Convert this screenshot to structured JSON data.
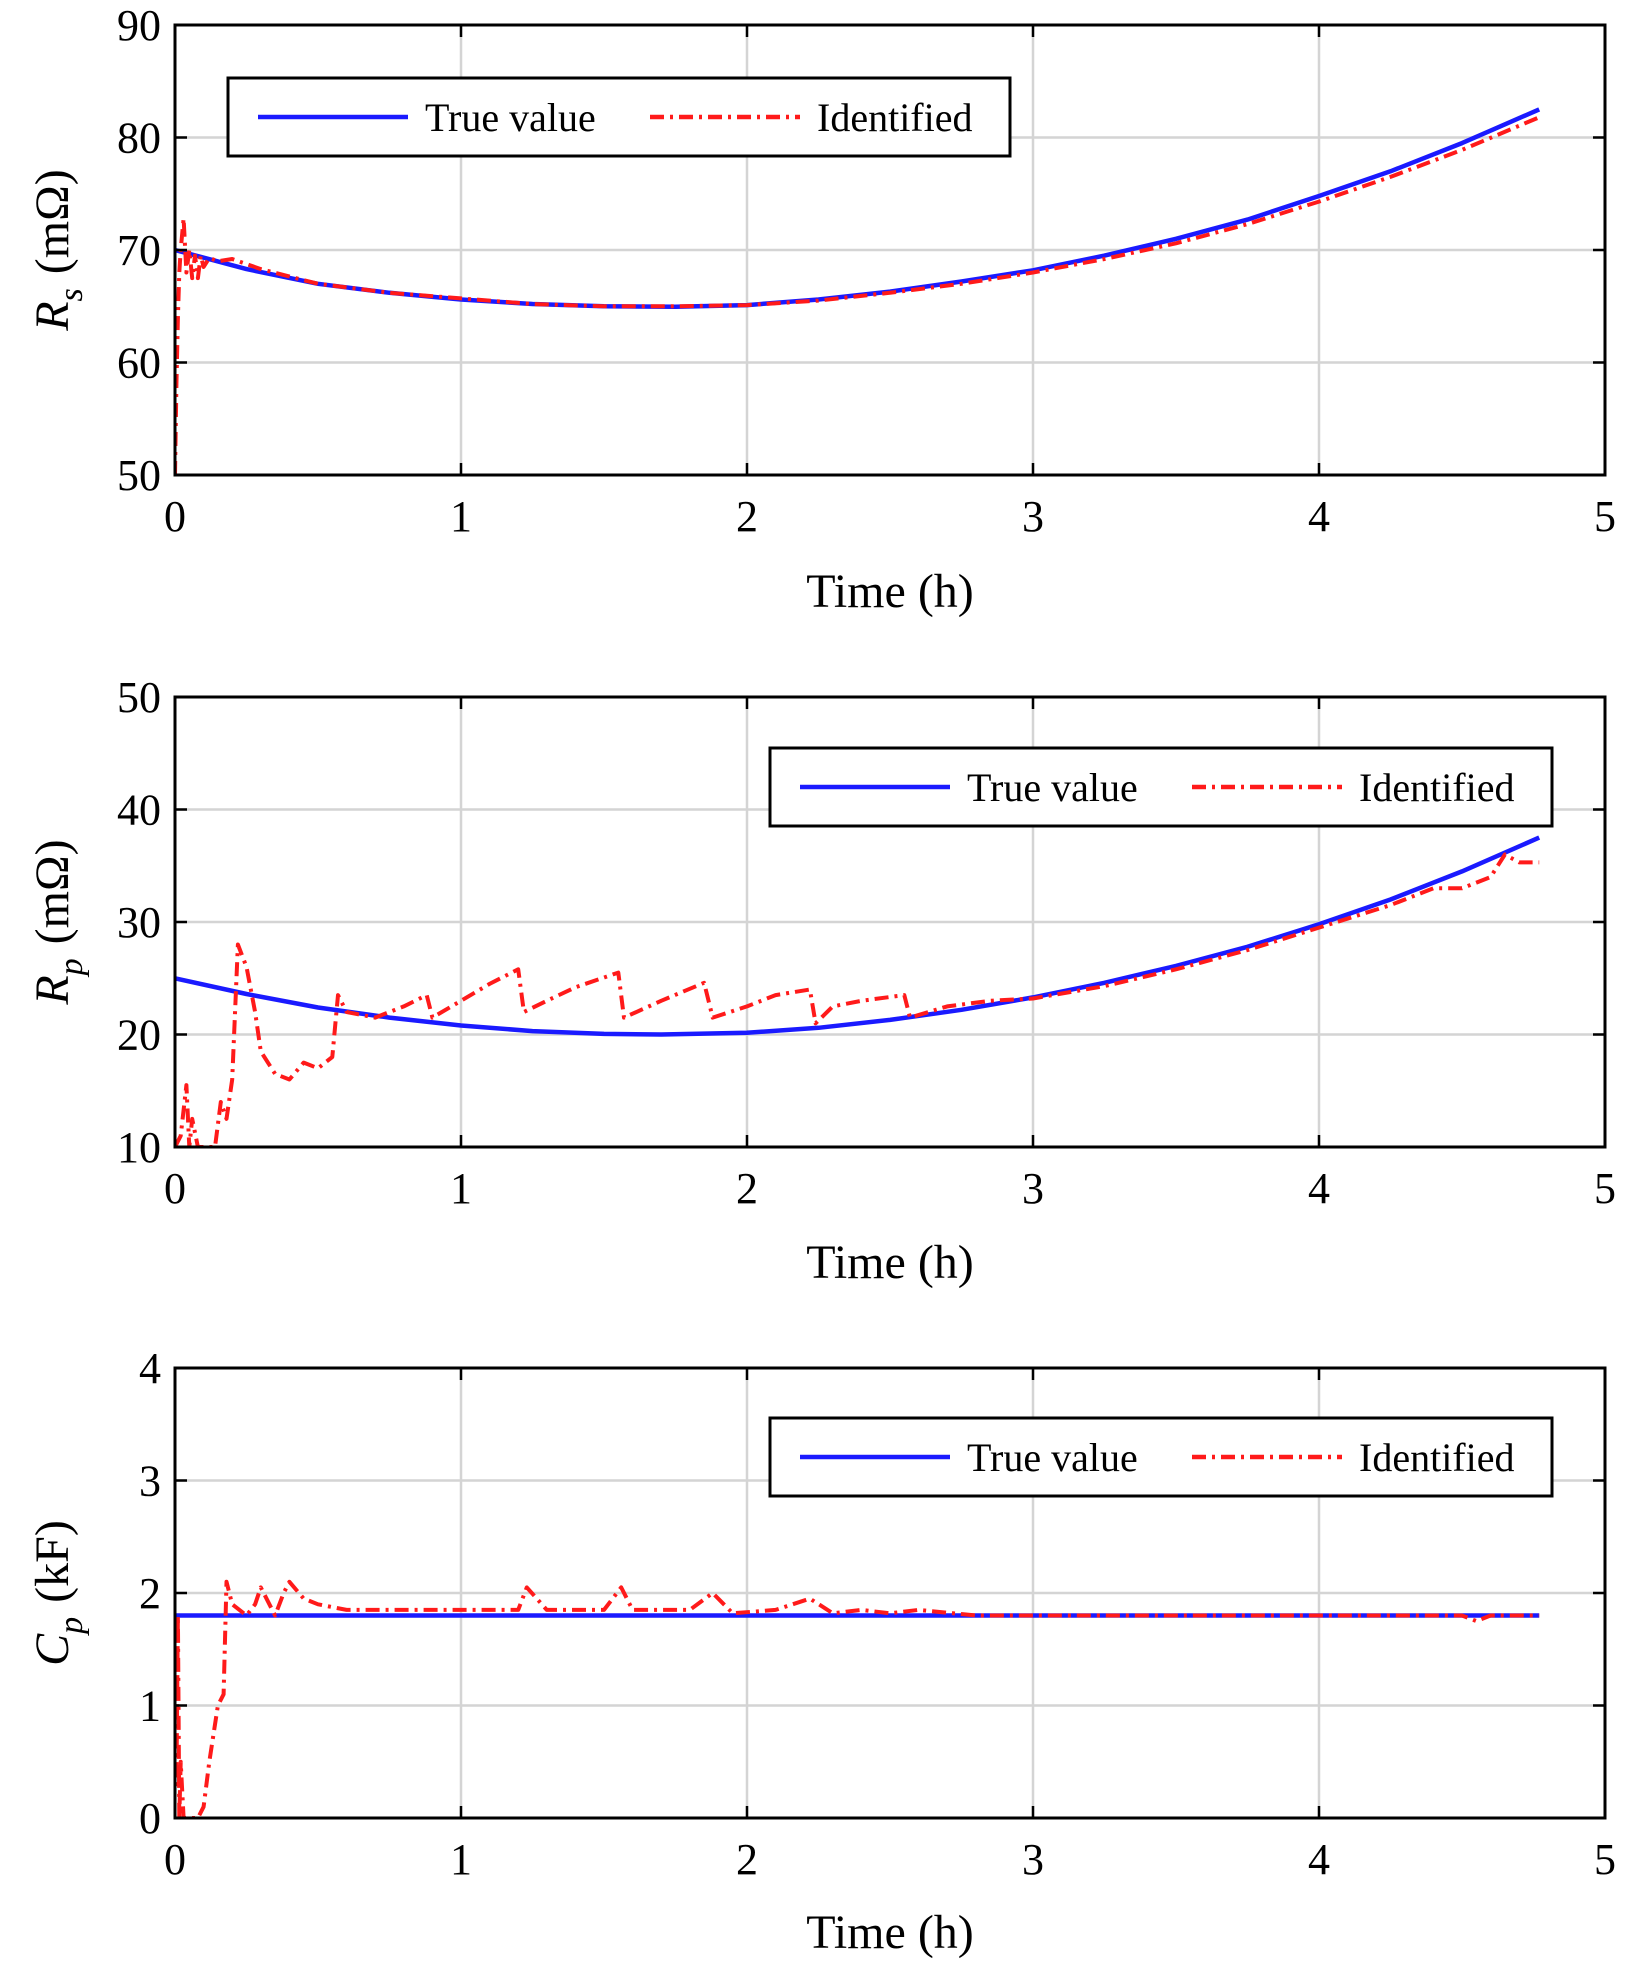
{
  "colors": {
    "true_value": "#1a1aff",
    "identified": "#ff1a1a",
    "grid": "#d4d4d4",
    "axis": "#000000"
  },
  "chart_data": [
    {
      "type": "line",
      "xlabel": "Time (h)",
      "ylabel": {
        "symbol": "R",
        "subscript": "s",
        "unit": "(mΩ)"
      },
      "xlim": [
        0,
        5
      ],
      "ylim": [
        50,
        90
      ],
      "xticks": [
        "0",
        "1",
        "2",
        "3",
        "4",
        "5"
      ],
      "yticks": [
        "50",
        "60",
        "70",
        "80",
        "90"
      ],
      "grid": true,
      "legend": {
        "position": "top-left",
        "entries": [
          "True value",
          "Identified"
        ]
      },
      "series": [
        {
          "name": "True value",
          "style": "solid",
          "x": [
            0,
            0.25,
            0.5,
            0.75,
            1.0,
            1.25,
            1.5,
            1.75,
            2.0,
            2.25,
            2.5,
            2.75,
            3.0,
            3.25,
            3.5,
            3.75,
            4.0,
            4.25,
            4.5,
            4.77
          ],
          "y": [
            70.0,
            68.3,
            67.0,
            66.2,
            65.6,
            65.2,
            65.0,
            64.95,
            65.1,
            65.6,
            66.3,
            67.2,
            68.2,
            69.5,
            71.0,
            72.7,
            74.8,
            77.0,
            79.5,
            82.5
          ]
        },
        {
          "name": "Identified",
          "style": "dash-dot",
          "x": [
            0,
            0.005,
            0.01,
            0.015,
            0.02,
            0.03,
            0.04,
            0.05,
            0.06,
            0.07,
            0.08,
            0.09,
            0.1,
            0.12,
            0.15,
            0.2,
            0.3,
            0.5,
            0.75,
            1.0,
            1.25,
            1.5,
            1.75,
            2.0,
            2.25,
            2.5,
            2.75,
            3.0,
            3.25,
            3.5,
            3.75,
            4.0,
            4.25,
            4.5,
            4.77
          ],
          "y": [
            50,
            58,
            64,
            68,
            70,
            72.8,
            68,
            70,
            67.5,
            69.5,
            67.5,
            69.5,
            68.5,
            69.3,
            69.0,
            69.2,
            68.3,
            67.0,
            66.2,
            65.7,
            65.2,
            65.0,
            65.0,
            65.1,
            65.5,
            66.2,
            67.0,
            68.0,
            69.2,
            70.6,
            72.3,
            74.3,
            76.5,
            78.9,
            81.8
          ]
        }
      ]
    },
    {
      "type": "line",
      "xlabel": "Time (h)",
      "ylabel": {
        "symbol": "R",
        "subscript": "p",
        "unit": "(mΩ)"
      },
      "xlim": [
        0,
        5
      ],
      "ylim": [
        10,
        50
      ],
      "xticks": [
        "0",
        "1",
        "2",
        "3",
        "4",
        "5"
      ],
      "yticks": [
        "10",
        "20",
        "30",
        "40",
        "50"
      ],
      "grid": true,
      "legend": {
        "position": "top-right",
        "entries": [
          "True value",
          "Identified"
        ]
      },
      "series": [
        {
          "name": "True value",
          "style": "solid",
          "x": [
            0,
            0.25,
            0.5,
            0.75,
            1.0,
            1.25,
            1.5,
            1.7,
            2.0,
            2.25,
            2.5,
            2.75,
            3.0,
            3.25,
            3.5,
            3.75,
            4.0,
            4.25,
            4.5,
            4.77
          ],
          "y": [
            25.0,
            23.6,
            22.4,
            21.5,
            20.8,
            20.3,
            20.05,
            20.0,
            20.15,
            20.6,
            21.3,
            22.2,
            23.3,
            24.6,
            26.1,
            27.8,
            29.8,
            32.0,
            34.5,
            37.5
          ]
        },
        {
          "name": "Identified",
          "style": "dash-dot",
          "x": [
            0,
            0.02,
            0.04,
            0.05,
            0.06,
            0.08,
            0.1,
            0.12,
            0.14,
            0.16,
            0.18,
            0.2,
            0.22,
            0.25,
            0.28,
            0.3,
            0.35,
            0.4,
            0.45,
            0.5,
            0.55,
            0.57,
            0.6,
            0.7,
            0.8,
            0.88,
            0.9,
            1.0,
            1.1,
            1.2,
            1.22,
            1.3,
            1.4,
            1.55,
            1.57,
            1.7,
            1.85,
            1.88,
            2.0,
            2.1,
            2.22,
            2.24,
            2.3,
            2.4,
            2.55,
            2.57,
            2.7,
            2.85,
            3.0,
            3.25,
            3.5,
            3.75,
            4.0,
            4.25,
            4.4,
            4.5,
            4.6,
            4.65,
            4.7,
            4.77
          ],
          "y": [
            10,
            11,
            15.5,
            10,
            12.5,
            10,
            10,
            10,
            10,
            14,
            12.5,
            16,
            28,
            26,
            22,
            18.5,
            16.5,
            16,
            17.5,
            17,
            18,
            23.5,
            22,
            21.5,
            22.5,
            23.5,
            21.5,
            23,
            24.5,
            25.8,
            22,
            23,
            24.2,
            25.5,
            21.5,
            23,
            24.6,
            21.5,
            22.5,
            23.5,
            24,
            21,
            22.5,
            23,
            23.5,
            21.5,
            22.5,
            23,
            23.2,
            24.3,
            25.8,
            27.5,
            29.5,
            31.5,
            33,
            33,
            34,
            36,
            35.3,
            35.3
          ]
        }
      ]
    },
    {
      "type": "line",
      "xlabel": "Time (h)",
      "ylabel": {
        "symbol": "C",
        "subscript": "p",
        "unit": "(kF)"
      },
      "xlim": [
        0,
        5
      ],
      "ylim": [
        0,
        4
      ],
      "xticks": [
        "0",
        "1",
        "2",
        "3",
        "4",
        "5"
      ],
      "yticks": [
        "0",
        "1",
        "2",
        "3",
        "4"
      ],
      "grid": true,
      "legend": {
        "position": "top-right",
        "entries": [
          "True value",
          "Identified"
        ]
      },
      "series": [
        {
          "name": "True value",
          "style": "solid",
          "x": [
            0,
            4.77
          ],
          "y": [
            1.8,
            1.8
          ]
        },
        {
          "name": "Identified",
          "style": "dash-dot",
          "x": [
            0,
            0.005,
            0.01,
            0.015,
            0.02,
            0.03,
            0.05,
            0.08,
            0.1,
            0.12,
            0.15,
            0.17,
            0.18,
            0.2,
            0.25,
            0.28,
            0.3,
            0.35,
            0.38,
            0.4,
            0.45,
            0.5,
            0.6,
            0.7,
            0.8,
            0.9,
            1.0,
            1.1,
            1.2,
            1.23,
            1.3,
            1.4,
            1.5,
            1.56,
            1.6,
            1.7,
            1.8,
            1.88,
            1.95,
            2.1,
            2.22,
            2.3,
            2.4,
            2.5,
            2.6,
            2.8,
            3.0,
            3.5,
            4.0,
            4.3,
            4.5,
            4.55,
            4.6,
            4.77
          ],
          "y": [
            1.0,
            0.3,
            1.8,
            0.0,
            0.5,
            0.0,
            0.0,
            0.0,
            0.1,
            0.5,
            1.0,
            1.1,
            2.1,
            1.9,
            1.8,
            1.9,
            2.05,
            1.8,
            2.0,
            2.1,
            1.95,
            1.9,
            1.85,
            1.85,
            1.85,
            1.85,
            1.85,
            1.85,
            1.85,
            2.05,
            1.85,
            1.85,
            1.85,
            2.05,
            1.85,
            1.85,
            1.85,
            2.0,
            1.82,
            1.85,
            1.95,
            1.82,
            1.85,
            1.82,
            1.85,
            1.8,
            1.8,
            1.8,
            1.8,
            1.8,
            1.8,
            1.75,
            1.8,
            1.8
          ]
        }
      ]
    }
  ]
}
